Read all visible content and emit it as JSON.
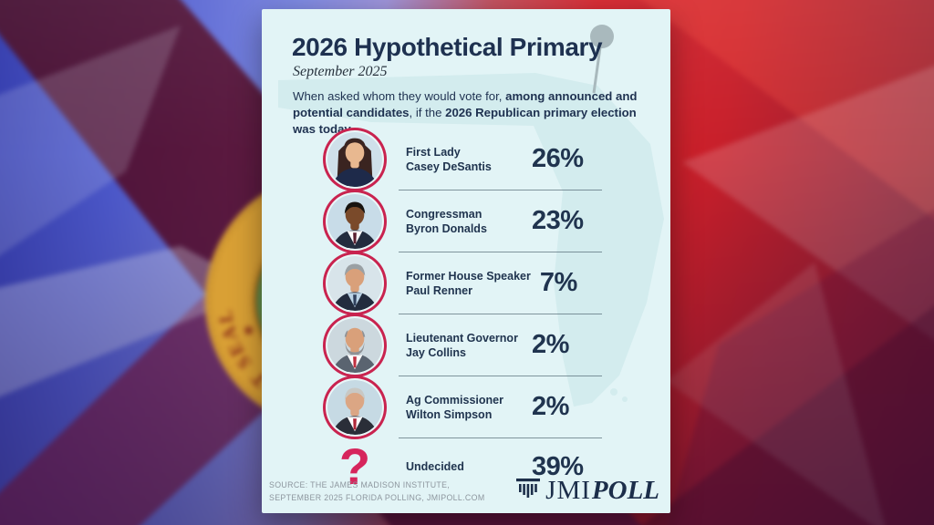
{
  "background": {
    "seal_text": "GREAT SEAL",
    "flag": "florida-state-flag-blurred",
    "left_color": "#4d5ace",
    "right_color": "#d8232c",
    "saltire_color": "#8c1d4b",
    "seal_gold": "#d9a035",
    "seal_green": "#5e8f4e"
  },
  "card": {
    "title": "2026 Hypothetical Primary",
    "subtitle": "September 2025",
    "intro_segments": [
      {
        "text": "When asked whom they would vote for, ",
        "bold": false
      },
      {
        "text": "among announced and potential candidates",
        "bold": true
      },
      {
        "text": ", if the ",
        "bold": false
      },
      {
        "text": "2026 Republican primary election was today",
        "bold": true
      },
      {
        "text": "…",
        "bold": false
      }
    ],
    "rows": [
      {
        "role": "First Lady",
        "name": "Casey DeSantis",
        "pct": "26%",
        "avatar": {
          "style": "woman",
          "bg": "#cfe0ea",
          "skin": "#e8b890",
          "hair": "#3a2420",
          "suit": "#1e2a4a",
          "shirt": "#1e2a4a",
          "tie": ""
        }
      },
      {
        "role": "Congressman",
        "name": "Byron Donalds",
        "pct": "23%",
        "avatar": {
          "style": "man",
          "bg": "#c8dce8",
          "skin": "#7a4a2a",
          "hair": "#171310",
          "suit": "#232c3e",
          "shirt": "#ffffff",
          "tie": "#5a2030"
        }
      },
      {
        "role": "Former House Speaker",
        "name": "Paul Renner",
        "pct": "7%",
        "avatar": {
          "style": "man",
          "bg": "#d8e4ea",
          "skin": "#d9a07a",
          "hair": "#9aa0a4",
          "suit": "#232c3e",
          "shirt": "#bcd4e6",
          "tie": "#30405c"
        }
      },
      {
        "role": "Lieutenant Governor",
        "name": "Jay Collins",
        "pct": "2%",
        "avatar": {
          "style": "bald",
          "bg": "#ccd8de",
          "skin": "#d9a07a",
          "hair": "#8e9296",
          "suit": "#5a6470",
          "shirt": "#ffffff",
          "tie": "#c03040"
        }
      },
      {
        "role": "Ag Commissioner",
        "name": "Wilton Simpson",
        "pct": "2%",
        "avatar": {
          "style": "man",
          "bg": "#c6dae4",
          "skin": "#dba684",
          "hair": "#c8c8c4",
          "suit": "#2a2e38",
          "shirt": "#ffffff",
          "tie": "#b02838"
        }
      },
      {
        "role": "Undecided",
        "name": "",
        "pct": "39%",
        "avatar": {
          "style": "question",
          "color": "#d6255c"
        }
      }
    ],
    "photo_ring_color": "#c9234f",
    "accent_navy": "#20344f",
    "card_background": "#e2f4f6"
  },
  "footer": {
    "source_line1": "SOURCE: THE JAMES MADISON INSTITUTE,",
    "source_line2": "SEPTEMBER 2025 FLORIDA POLLING, JMIPOLL.COM",
    "logo_jmi": "JMI",
    "logo_poll": "POLL"
  },
  "chart_data": {
    "type": "table",
    "title": "2026 Hypothetical Primary",
    "subtitle": "September 2025",
    "question": "When asked whom they would vote for, among announced and potential candidates, if the 2026 Republican primary election was today…",
    "categories": [
      "First Lady Casey DeSantis",
      "Congressman Byron Donalds",
      "Former House Speaker Paul Renner",
      "Lieutenant Governor Jay Collins",
      "Ag Commissioner Wilton Simpson",
      "Undecided"
    ],
    "values": [
      26,
      23,
      7,
      2,
      2,
      39
    ],
    "unit": "%",
    "source": "The James Madison Institute, September 2025 Florida Polling, JMIPOLL.COM"
  }
}
